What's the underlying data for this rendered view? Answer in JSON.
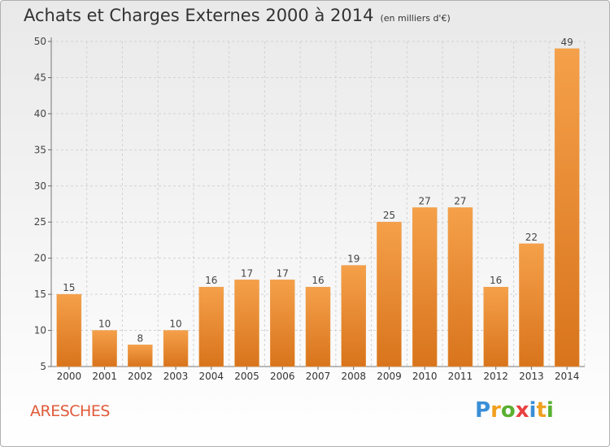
{
  "chart_data": {
    "type": "bar",
    "title": "Achats et Charges Externes 2000 à 2014",
    "subtitle": "(en milliers d'€)",
    "categories": [
      "2000",
      "2001",
      "2002",
      "2003",
      "2004",
      "2005",
      "2006",
      "2007",
      "2008",
      "2009",
      "2010",
      "2011",
      "2012",
      "2013",
      "2014"
    ],
    "values": [
      15,
      10,
      8,
      10,
      16,
      17,
      17,
      16,
      19,
      25,
      27,
      27,
      16,
      22,
      49
    ],
    "ylim": [
      5,
      50
    ],
    "yticks": [
      5,
      10,
      15,
      20,
      25,
      30,
      35,
      40,
      45,
      50
    ],
    "grid": true,
    "bar_color": "#f5a04a",
    "bar_color_dark": "#d8741c"
  },
  "commune": "ARESCHES",
  "logo": {
    "text": "Proxiti",
    "letters": [
      {
        "ch": "P",
        "color": "#3a8fd6"
      },
      {
        "ch": "r",
        "color": "#f0a020"
      },
      {
        "ch": "o",
        "color": "#5ab030"
      },
      {
        "ch": "x",
        "color": "#e84040"
      },
      {
        "ch": "i",
        "color": "#3a8fd6"
      },
      {
        "ch": "t",
        "color": "#f0a020"
      },
      {
        "ch": "i",
        "color": "#5ab030"
      }
    ]
  }
}
